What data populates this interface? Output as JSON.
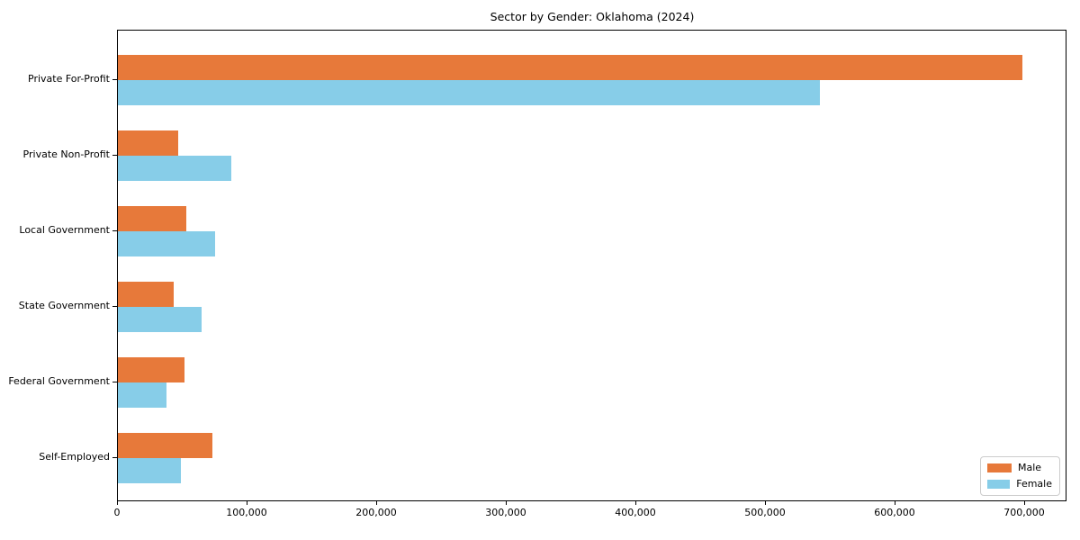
{
  "title": "Sector by Gender: Oklahoma (2024)",
  "colors": {
    "male": "#e7793a",
    "female": "#87cde8",
    "axis": "#000000",
    "legend_border": "#cccccc",
    "text": "#000000"
  },
  "legend": {
    "entries": [
      "Male",
      "Female"
    ],
    "position": "lower right"
  },
  "chart_data": {
    "type": "bar",
    "orientation": "horizontal",
    "title": "Sector by Gender: Oklahoma (2024)",
    "categories": [
      "Private For-Profit",
      "Private Non-Profit",
      "Local Government",
      "State Government",
      "Federal Government",
      "Self-Employed"
    ],
    "series": [
      {
        "name": "Male",
        "color": "#e7793a",
        "values": [
          698000,
          46500,
          53000,
          43000,
          51500,
          73000
        ]
      },
      {
        "name": "Female",
        "color": "#87cde8",
        "values": [
          542000,
          87500,
          75000,
          64500,
          37500,
          48500
        ]
      }
    ],
    "xlabel": "",
    "ylabel": "",
    "xlim": [
      0,
      732000
    ],
    "xticks": [
      0,
      100000,
      200000,
      300000,
      400000,
      500000,
      600000,
      700000
    ],
    "xtick_labels": [
      "0",
      "100,000",
      "200,000",
      "300,000",
      "400,000",
      "500,000",
      "600,000",
      "700,000"
    ],
    "grid": false,
    "legend_position": "lower right"
  }
}
